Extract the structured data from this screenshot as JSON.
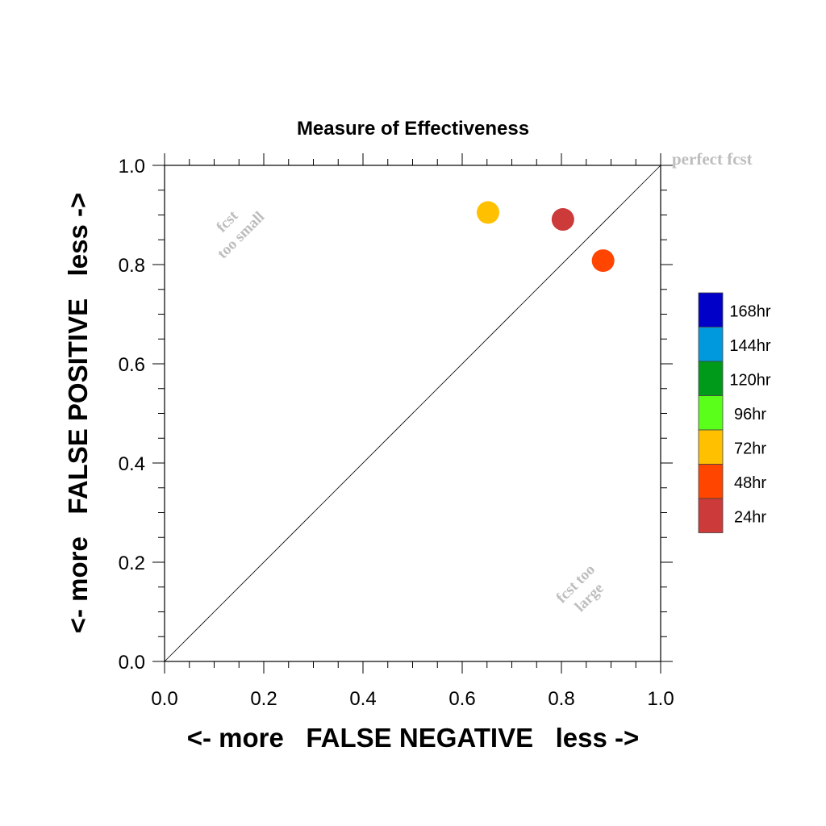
{
  "chart_data": {
    "type": "scatter",
    "title": "Measure of Effectiveness",
    "xlabel": "<- more   FALSE NEGATIVE   less ->",
    "ylabel": "<- more   FALSE POSITIVE   less ->",
    "xlim": [
      0,
      1
    ],
    "ylim": [
      0,
      1
    ],
    "x_ticks": [
      "0.0",
      "0.2",
      "0.4",
      "0.6",
      "0.8",
      "1.0"
    ],
    "y_ticks": [
      "0.0",
      "0.2",
      "0.4",
      "0.6",
      "0.8",
      "1.0"
    ],
    "grid": false,
    "diagonal_reference_line": true,
    "annotations": {
      "perfect": "perfect fcst",
      "too_small_1": "fcst",
      "too_small_2": "too small",
      "too_large_1": "fcst too",
      "too_large_2": "large"
    },
    "points": [
      {
        "x": 0.652,
        "y": 0.905,
        "color": "#ffc000",
        "series": "72hr"
      },
      {
        "x": 0.803,
        "y": 0.891,
        "color": "#cc3a3a",
        "series": "24hr"
      },
      {
        "x": 0.884,
        "y": 0.808,
        "color": "#ff4500"
      }
    ],
    "legend": {
      "placement": "right",
      "items": [
        {
          "label": "168hr",
          "color": "#0000c8"
        },
        {
          "label": "144hr",
          "color": "#0099dd"
        },
        {
          "label": "120hr",
          "color": "#009a1a"
        },
        {
          "label": "96hr",
          "color": "#5aff1a"
        },
        {
          "label": "72hr",
          "color": "#ffc000"
        },
        {
          "label": "48hr",
          "color": "#ff4500"
        },
        {
          "label": "24hr",
          "color": "#cc3a3a"
        }
      ]
    }
  }
}
